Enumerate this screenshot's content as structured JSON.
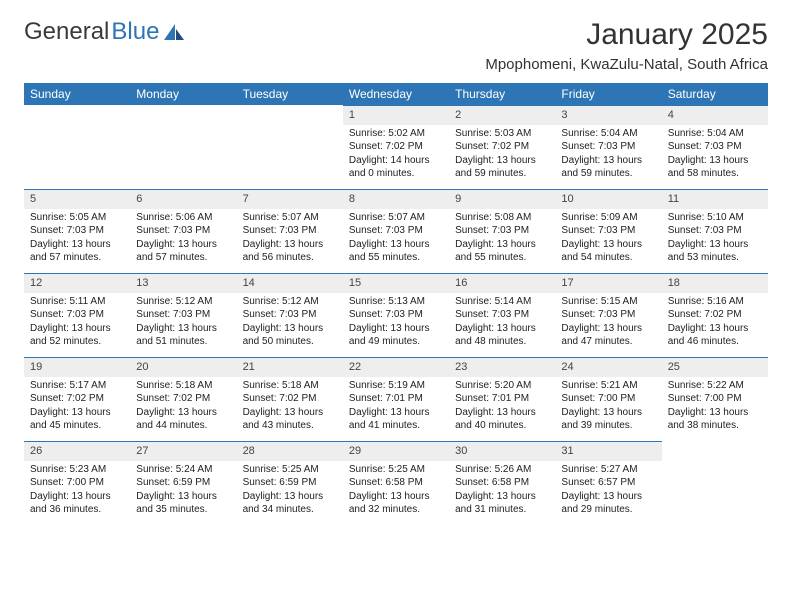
{
  "brand": {
    "part1": "General",
    "part2": "Blue"
  },
  "title": "January 2025",
  "location": "Mpophomeni, KwaZulu-Natal, South Africa",
  "colors": {
    "header_bg": "#2e75b6",
    "header_fg": "#ffffff",
    "daybar_bg": "#eeeeee",
    "border": "#2e75b6",
    "text": "#222222",
    "background": "#ffffff"
  },
  "typography": {
    "title_fontsize": 30,
    "location_fontsize": 15,
    "dayheader_fontsize": 12,
    "cell_fontsize": 10
  },
  "calendar": {
    "type": "table",
    "columns": [
      "Sunday",
      "Monday",
      "Tuesday",
      "Wednesday",
      "Thursday",
      "Friday",
      "Saturday"
    ],
    "weeks": [
      [
        null,
        null,
        null,
        {
          "d": "1",
          "sr": "Sunrise: 5:02 AM",
          "ss": "Sunset: 7:02 PM",
          "dl": "Daylight: 14 hours and 0 minutes."
        },
        {
          "d": "2",
          "sr": "Sunrise: 5:03 AM",
          "ss": "Sunset: 7:02 PM",
          "dl": "Daylight: 13 hours and 59 minutes."
        },
        {
          "d": "3",
          "sr": "Sunrise: 5:04 AM",
          "ss": "Sunset: 7:03 PM",
          "dl": "Daylight: 13 hours and 59 minutes."
        },
        {
          "d": "4",
          "sr": "Sunrise: 5:04 AM",
          "ss": "Sunset: 7:03 PM",
          "dl": "Daylight: 13 hours and 58 minutes."
        }
      ],
      [
        {
          "d": "5",
          "sr": "Sunrise: 5:05 AM",
          "ss": "Sunset: 7:03 PM",
          "dl": "Daylight: 13 hours and 57 minutes."
        },
        {
          "d": "6",
          "sr": "Sunrise: 5:06 AM",
          "ss": "Sunset: 7:03 PM",
          "dl": "Daylight: 13 hours and 57 minutes."
        },
        {
          "d": "7",
          "sr": "Sunrise: 5:07 AM",
          "ss": "Sunset: 7:03 PM",
          "dl": "Daylight: 13 hours and 56 minutes."
        },
        {
          "d": "8",
          "sr": "Sunrise: 5:07 AM",
          "ss": "Sunset: 7:03 PM",
          "dl": "Daylight: 13 hours and 55 minutes."
        },
        {
          "d": "9",
          "sr": "Sunrise: 5:08 AM",
          "ss": "Sunset: 7:03 PM",
          "dl": "Daylight: 13 hours and 55 minutes."
        },
        {
          "d": "10",
          "sr": "Sunrise: 5:09 AM",
          "ss": "Sunset: 7:03 PM",
          "dl": "Daylight: 13 hours and 54 minutes."
        },
        {
          "d": "11",
          "sr": "Sunrise: 5:10 AM",
          "ss": "Sunset: 7:03 PM",
          "dl": "Daylight: 13 hours and 53 minutes."
        }
      ],
      [
        {
          "d": "12",
          "sr": "Sunrise: 5:11 AM",
          "ss": "Sunset: 7:03 PM",
          "dl": "Daylight: 13 hours and 52 minutes."
        },
        {
          "d": "13",
          "sr": "Sunrise: 5:12 AM",
          "ss": "Sunset: 7:03 PM",
          "dl": "Daylight: 13 hours and 51 minutes."
        },
        {
          "d": "14",
          "sr": "Sunrise: 5:12 AM",
          "ss": "Sunset: 7:03 PM",
          "dl": "Daylight: 13 hours and 50 minutes."
        },
        {
          "d": "15",
          "sr": "Sunrise: 5:13 AM",
          "ss": "Sunset: 7:03 PM",
          "dl": "Daylight: 13 hours and 49 minutes."
        },
        {
          "d": "16",
          "sr": "Sunrise: 5:14 AM",
          "ss": "Sunset: 7:03 PM",
          "dl": "Daylight: 13 hours and 48 minutes."
        },
        {
          "d": "17",
          "sr": "Sunrise: 5:15 AM",
          "ss": "Sunset: 7:03 PM",
          "dl": "Daylight: 13 hours and 47 minutes."
        },
        {
          "d": "18",
          "sr": "Sunrise: 5:16 AM",
          "ss": "Sunset: 7:02 PM",
          "dl": "Daylight: 13 hours and 46 minutes."
        }
      ],
      [
        {
          "d": "19",
          "sr": "Sunrise: 5:17 AM",
          "ss": "Sunset: 7:02 PM",
          "dl": "Daylight: 13 hours and 45 minutes."
        },
        {
          "d": "20",
          "sr": "Sunrise: 5:18 AM",
          "ss": "Sunset: 7:02 PM",
          "dl": "Daylight: 13 hours and 44 minutes."
        },
        {
          "d": "21",
          "sr": "Sunrise: 5:18 AM",
          "ss": "Sunset: 7:02 PM",
          "dl": "Daylight: 13 hours and 43 minutes."
        },
        {
          "d": "22",
          "sr": "Sunrise: 5:19 AM",
          "ss": "Sunset: 7:01 PM",
          "dl": "Daylight: 13 hours and 41 minutes."
        },
        {
          "d": "23",
          "sr": "Sunrise: 5:20 AM",
          "ss": "Sunset: 7:01 PM",
          "dl": "Daylight: 13 hours and 40 minutes."
        },
        {
          "d": "24",
          "sr": "Sunrise: 5:21 AM",
          "ss": "Sunset: 7:00 PM",
          "dl": "Daylight: 13 hours and 39 minutes."
        },
        {
          "d": "25",
          "sr": "Sunrise: 5:22 AM",
          "ss": "Sunset: 7:00 PM",
          "dl": "Daylight: 13 hours and 38 minutes."
        }
      ],
      [
        {
          "d": "26",
          "sr": "Sunrise: 5:23 AM",
          "ss": "Sunset: 7:00 PM",
          "dl": "Daylight: 13 hours and 36 minutes."
        },
        {
          "d": "27",
          "sr": "Sunrise: 5:24 AM",
          "ss": "Sunset: 6:59 PM",
          "dl": "Daylight: 13 hours and 35 minutes."
        },
        {
          "d": "28",
          "sr": "Sunrise: 5:25 AM",
          "ss": "Sunset: 6:59 PM",
          "dl": "Daylight: 13 hours and 34 minutes."
        },
        {
          "d": "29",
          "sr": "Sunrise: 5:25 AM",
          "ss": "Sunset: 6:58 PM",
          "dl": "Daylight: 13 hours and 32 minutes."
        },
        {
          "d": "30",
          "sr": "Sunrise: 5:26 AM",
          "ss": "Sunset: 6:58 PM",
          "dl": "Daylight: 13 hours and 31 minutes."
        },
        {
          "d": "31",
          "sr": "Sunrise: 5:27 AM",
          "ss": "Sunset: 6:57 PM",
          "dl": "Daylight: 13 hours and 29 minutes."
        },
        null
      ]
    ]
  }
}
